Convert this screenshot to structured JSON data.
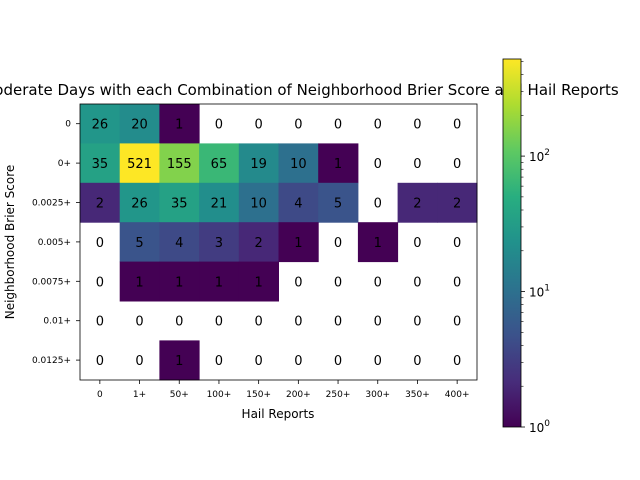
{
  "chart_data": {
    "type": "heatmap",
    "title": "Moderate Days with each Combination of Neighborhood Brier Score and Hail Reports",
    "xlabel": "Hail Reports",
    "ylabel": "Neighborhood Brier Score",
    "x_categories": [
      "0",
      "1+",
      "50+",
      "100+",
      "150+",
      "200+",
      "250+",
      "300+",
      "350+",
      "400+"
    ],
    "y_categories": [
      "0",
      "0+",
      "0.0025+",
      "0.005+",
      "0.0075+",
      "0.01+",
      "0.0125+"
    ],
    "values": [
      [
        26,
        20,
        1,
        0,
        0,
        0,
        0,
        0,
        0,
        0
      ],
      [
        35,
        521,
        155,
        65,
        19,
        10,
        1,
        0,
        0,
        0
      ],
      [
        2,
        26,
        35,
        21,
        10,
        4,
        5,
        0,
        2,
        2
      ],
      [
        0,
        5,
        4,
        3,
        2,
        1,
        0,
        1,
        0,
        0
      ],
      [
        0,
        1,
        1,
        1,
        1,
        0,
        0,
        0,
        0,
        0
      ],
      [
        0,
        0,
        0,
        0,
        0,
        0,
        0,
        0,
        0,
        0
      ],
      [
        0,
        0,
        1,
        0,
        0,
        0,
        0,
        0,
        0,
        0
      ]
    ],
    "colorbar": {
      "scale": "log",
      "colormap": "viridis",
      "range": [
        1,
        521
      ],
      "tick_labels": [
        {
          "base": "10",
          "exp": "0",
          "value": 1
        },
        {
          "base": "10",
          "exp": "1",
          "value": 10
        },
        {
          "base": "10",
          "exp": "2",
          "value": 100
        }
      ]
    },
    "zero_cells": "blank (white), value still printed",
    "grid": false
  }
}
